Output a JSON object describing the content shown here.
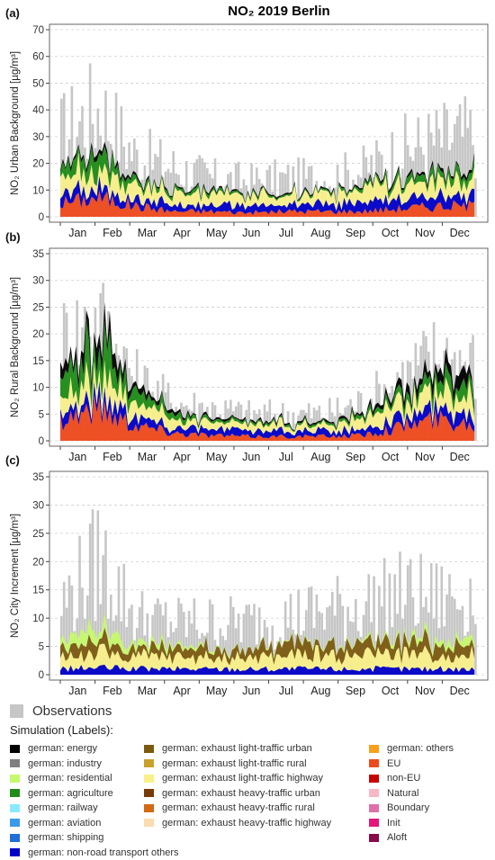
{
  "title": "NO₂  2019 Berlin",
  "months": [
    "Jan",
    "Feb",
    "Mar",
    "Apr",
    "May",
    "Jun",
    "Jul",
    "Aug",
    "Sep",
    "Oct",
    "Nov",
    "Dec"
  ],
  "panels": [
    {
      "tag": "(a)",
      "ylabel": "NO₂ Urban Background [µg/m³]",
      "ylim": [
        0,
        70
      ],
      "ticks": [
        0,
        10,
        20,
        30,
        40,
        50,
        60,
        70
      ]
    },
    {
      "tag": "(b)",
      "ylabel": "NO₂ Rural Background [µg/m³]",
      "ylim": [
        0,
        35
      ],
      "ticks": [
        0,
        5,
        10,
        15,
        20,
        25,
        30,
        35
      ]
    },
    {
      "tag": "(c)",
      "ylabel": "NO₂ City Increment [µg/m³]",
      "ylim": [
        0,
        35
      ],
      "ticks": [
        0,
        5,
        10,
        15,
        20,
        25,
        30,
        35
      ]
    }
  ],
  "legend": {
    "observations_label": "Observations",
    "simulation_title": "Simulation (Labels):",
    "observations_color": "#c6c6c6",
    "items": [
      {
        "label": "german: energy",
        "color": "#000000"
      },
      {
        "label": "german: industry",
        "color": "#7f7f7f"
      },
      {
        "label": "german: residential",
        "color": "#c6f96e"
      },
      {
        "label": "german: agriculture",
        "color": "#1e8c16"
      },
      {
        "label": "german: railway",
        "color": "#8be9ff"
      },
      {
        "label": "german: aviation",
        "color": "#3a9ce8"
      },
      {
        "label": "german: shipping",
        "color": "#1f6fd6"
      },
      {
        "label": "german: non-road transport others",
        "color": "#0000c8"
      },
      {
        "label": "german: exhaust light-traffic urban",
        "color": "#7b5a10"
      },
      {
        "label": "german: exhaust light-traffic rural",
        "color": "#c9a12a"
      },
      {
        "label": "german: exhaust light-traffic highway",
        "color": "#f9f08a"
      },
      {
        "label": "german: exhaust heavy-traffic urban",
        "color": "#7a3a08"
      },
      {
        "label": "german: exhaust heavy-traffic rural",
        "color": "#d26a14"
      },
      {
        "label": "german: exhaust heavy-traffic highway",
        "color": "#fbdcb1"
      },
      {
        "label": "german: others",
        "color": "#f8a01b"
      },
      {
        "label": "EU",
        "color": "#ef4a1b"
      },
      {
        "label": "non-EU",
        "color": "#c80000"
      },
      {
        "label": "Natural",
        "color": "#f7b8c6"
      },
      {
        "label": "Boundary",
        "color": "#e070a8"
      },
      {
        "label": "Init",
        "color": "#e5177a"
      },
      {
        "label": "Aloft",
        "color": "#8a0a4a"
      }
    ]
  },
  "chart_data": [
    {
      "type": "area",
      "title": "NO₂  2019 Berlin",
      "panel": "(a)",
      "ylabel": "NO₂ Urban Background [µg/m³]",
      "ylim": [
        0,
        70
      ],
      "x_unit": "month",
      "categories": [
        "Jan",
        "Feb",
        "Mar",
        "Apr",
        "May",
        "Jun",
        "Jul",
        "Aug",
        "Sep",
        "Oct",
        "Nov",
        "Dec"
      ],
      "series": [
        {
          "name": "Observations",
          "values": [
            30,
            40,
            22,
            18,
            14,
            13,
            14,
            14,
            17,
            24,
            28,
            30
          ]
        },
        {
          "name": "EU",
          "values": [
            5,
            7,
            4,
            2,
            2,
            1.5,
            2,
            2,
            2,
            3,
            4,
            4
          ]
        },
        {
          "name": "german: non-road transport others",
          "values": [
            3,
            3.5,
            3,
            2.5,
            2.5,
            2.5,
            2.5,
            2.5,
            3,
            3,
            3.5,
            3.5
          ]
        },
        {
          "name": "german: exhaust light-traffic highway",
          "values": [
            6,
            7,
            5,
            4,
            4,
            4,
            4,
            4,
            5,
            5,
            6,
            6
          ]
        },
        {
          "name": "german: agriculture",
          "values": [
            3,
            6,
            2,
            1,
            1,
            0.5,
            0.5,
            0.5,
            1,
            1.5,
            2.5,
            3
          ]
        },
        {
          "name": "german: energy",
          "values": [
            1,
            1.5,
            0.8,
            0.5,
            0.5,
            0.5,
            0.5,
            0.5,
            0.5,
            0.8,
            1,
            1
          ]
        }
      ]
    },
    {
      "type": "area",
      "panel": "(b)",
      "ylabel": "NO₂ Rural Background [µg/m³]",
      "ylim": [
        0,
        35
      ],
      "x_unit": "month",
      "categories": [
        "Jan",
        "Feb",
        "Mar",
        "Apr",
        "May",
        "Jun",
        "Jul",
        "Aug",
        "Sep",
        "Oct",
        "Nov",
        "Dec"
      ],
      "series": [
        {
          "name": "Observations",
          "values": [
            18,
            22,
            11,
            7,
            6,
            5,
            5,
            5,
            7,
            11,
            16,
            14
          ]
        },
        {
          "name": "EU",
          "values": [
            4,
            6,
            3,
            1.5,
            1,
            0.8,
            0.8,
            0.8,
            1,
            2.5,
            4,
            3
          ]
        },
        {
          "name": "german: non-road transport others",
          "values": [
            1.5,
            2,
            1.5,
            1,
            1,
            1,
            1,
            1,
            1,
            1.5,
            2,
            2
          ]
        },
        {
          "name": "german: exhaust light-traffic highway",
          "values": [
            3,
            4,
            2.5,
            1.5,
            1.5,
            1.2,
            1.2,
            1.3,
            2,
            2.5,
            3.5,
            3.5
          ]
        },
        {
          "name": "german: agriculture",
          "values": [
            3,
            6,
            2,
            0.8,
            0.5,
            0.3,
            0.3,
            0.3,
            0.5,
            1,
            2,
            2
          ]
        },
        {
          "name": "german: energy",
          "values": [
            2,
            3,
            1,
            0.5,
            0.3,
            0.3,
            0.3,
            0.3,
            0.5,
            1,
            2,
            2
          ]
        }
      ]
    },
    {
      "type": "area",
      "panel": "(c)",
      "ylabel": "NO₂ City Increment [µg/m³]",
      "ylim": [
        0,
        35
      ],
      "x_unit": "month",
      "categories": [
        "Jan",
        "Feb",
        "Mar",
        "Apr",
        "May",
        "Jun",
        "Jul",
        "Aug",
        "Sep",
        "Oct",
        "Nov",
        "Dec"
      ],
      "series": [
        {
          "name": "Observations",
          "values": [
            12,
            20,
            10,
            9,
            9,
            9,
            10,
            11,
            12,
            14,
            13,
            14
          ]
        },
        {
          "name": "german: non-road transport others",
          "values": [
            1,
            1.2,
            1,
            1,
            1,
            1,
            1,
            1,
            1,
            1,
            1,
            1
          ]
        },
        {
          "name": "german: exhaust light-traffic highway",
          "values": [
            2,
            2.5,
            2,
            2,
            2,
            2,
            2.2,
            2.5,
            2.5,
            2.5,
            2.5,
            2.5
          ]
        },
        {
          "name": "german: exhaust light-traffic urban",
          "values": [
            1.5,
            2,
            1.5,
            1.5,
            1.5,
            1.5,
            2,
            2,
            2,
            2,
            2,
            2
          ]
        },
        {
          "name": "german: residential",
          "values": [
            1.5,
            2,
            1,
            0.5,
            0.3,
            0.2,
            0.2,
            0.2,
            0.3,
            0.5,
            1,
            1.2
          ]
        }
      ]
    }
  ]
}
